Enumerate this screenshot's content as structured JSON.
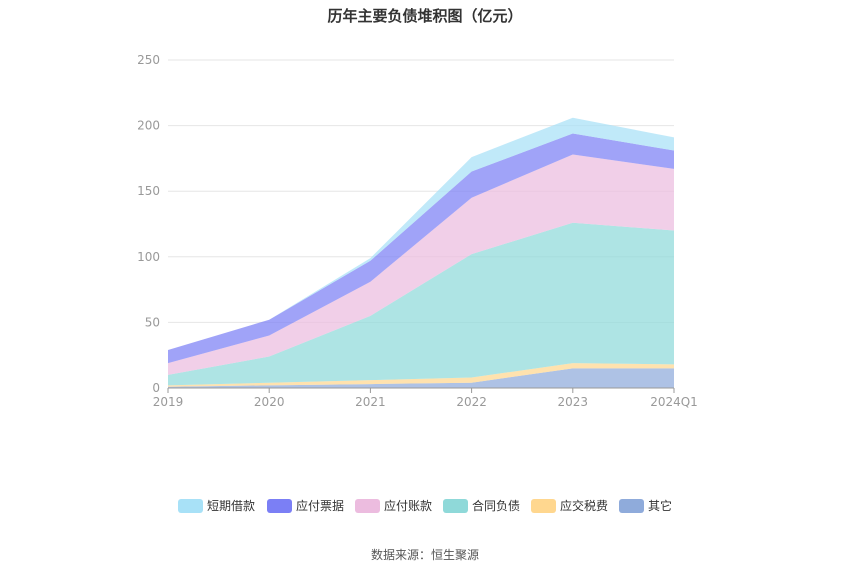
{
  "chart_data": {
    "type": "area",
    "title": "历年主要负债堆积图（亿元）",
    "categories": [
      "2019",
      "2020",
      "2021",
      "2022",
      "2023",
      "2024Q1"
    ],
    "yticks": [
      "0",
      "50",
      "100",
      "150",
      "200",
      "250"
    ],
    "ylim": [
      0,
      250
    ],
    "grid": true,
    "legend_position": "bottom",
    "series": [
      {
        "name": "其它",
        "color": "#8fabdb",
        "values": [
          1,
          2,
          3,
          4,
          15,
          15
        ]
      },
      {
        "name": "应交税费",
        "color": "#ffd78f",
        "values": [
          1,
          2,
          3,
          4,
          4,
          3
        ]
      },
      {
        "name": "合同负债",
        "color": "#8fd9d9",
        "values": [
          8,
          20,
          49,
          94,
          107,
          102
        ]
      },
      {
        "name": "应付账款",
        "color": "#ecbcdf",
        "values": [
          9,
          16,
          26,
          43,
          52,
          47
        ]
      },
      {
        "name": "应付票据",
        "color": "#7b7ff5",
        "values": [
          10,
          12,
          16,
          20,
          16,
          14
        ]
      },
      {
        "name": "短期借款",
        "color": "#a8e1f7",
        "values": [
          0,
          0,
          2,
          11,
          12,
          10
        ]
      }
    ]
  },
  "legend_order": [
    "短期借款",
    "应付票据",
    "应付账款",
    "合同负债",
    "应交税费",
    "其它"
  ],
  "source": "数据来源：恒生聚源"
}
